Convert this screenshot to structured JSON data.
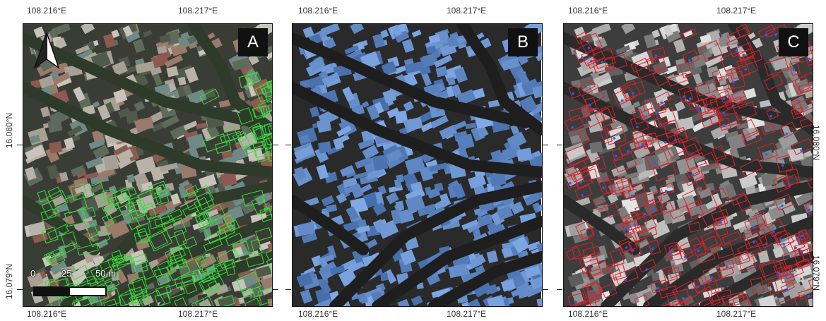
{
  "figure": {
    "panels": [
      {
        "letter": "A",
        "style": "color-imagery-green-outlines"
      },
      {
        "letter": "B",
        "style": "blue-roof-segmentation"
      },
      {
        "letter": "C",
        "style": "grayscale-red-outlines-blue-points"
      }
    ],
    "lon_labels": [
      "108.216°E",
      "108.217°E"
    ],
    "lat_labels": [
      "16.080°N",
      "16.079°N"
    ],
    "scale_bar": {
      "ticks": [
        "0",
        "25",
        "50 m"
      ]
    },
    "north_arrow": "north-arrow-icon",
    "colors": {
      "panel_a_outline": "#35e03a",
      "panel_c_outline": "#e0202a",
      "panel_c_point": "#2b5cff",
      "panel_b_roof": "#7ea8e8",
      "label_bg": "#111111"
    }
  }
}
